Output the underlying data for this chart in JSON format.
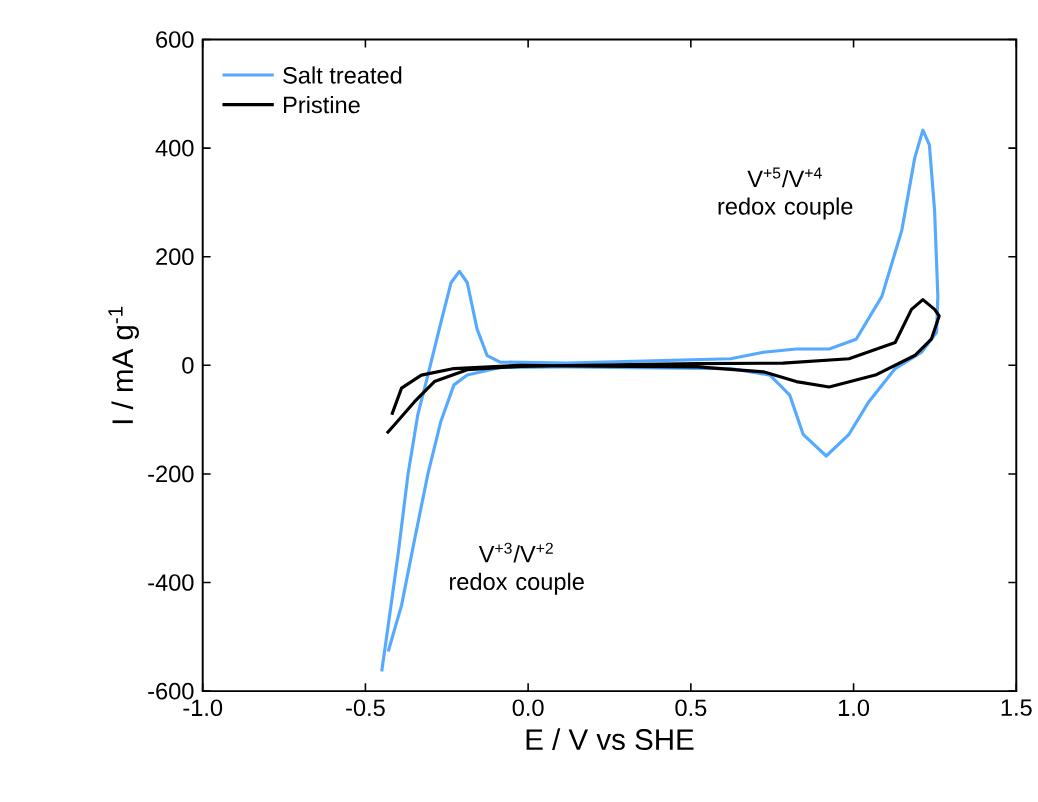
{
  "chart_data": {
    "type": "line",
    "xlabel": "E / V vs SHE",
    "ylabel": "I / mA g$^{-1}$",
    "xlim": [
      -1.0,
      1.5
    ],
    "ylim": [
      -600,
      600
    ],
    "xticks": [
      {
        "value": -1.0,
        "label": "-1.0"
      },
      {
        "value": -0.5,
        "label": "-0.5"
      },
      {
        "value": 0.0,
        "label": "0.0"
      },
      {
        "value": 0.5,
        "label": "0.5"
      },
      {
        "value": 1.0,
        "label": "1.0"
      },
      {
        "value": 1.5,
        "label": "1.5"
      }
    ],
    "yticks": [
      -600,
      -400,
      -200,
      0,
      200,
      400,
      600
    ],
    "grid": false,
    "legend": "top left",
    "marker": "none",
    "line_style": "solid",
    "annotations": [
      "V$^{+5}$/V$^{+4}$ redox couple",
      "V$^{+3}$/V$^{+2}$ redox couple"
    ],
    "series": [
      {
        "name": "Salt treated",
        "color": "#55aaff",
        "x": [
          -0.45,
          -0.43,
          -0.399,
          -0.369,
          -0.339,
          -0.308,
          -0.268,
          -0.237,
          -0.211,
          -0.187,
          -0.157,
          -0.126,
          -0.086,
          0.117,
          0.622,
          0.723,
          0.824,
          0.925,
          1.008,
          1.087,
          1.148,
          1.188,
          1.213,
          1.233,
          1.249,
          1.259,
          1.255,
          1.209,
          1.128,
          1.047,
          0.986,
          0.916,
          0.845,
          0.804,
          0.743,
          0.622,
          0.117,
          -0.086,
          -0.187,
          -0.228,
          -0.268,
          -0.308,
          -0.349,
          -0.389,
          -0.43
        ],
        "values": [
          -564,
          -479,
          -345,
          -200,
          -91,
          -18,
          79,
          152,
          173,
          152,
          67,
          18,
          6,
          4,
          12,
          24,
          30,
          30,
          48,
          127,
          248,
          382,
          433,
          406,
          285,
          127,
          61,
          24,
          -6,
          -67,
          -127,
          -167,
          -127,
          -55,
          -18,
          -6,
          -3,
          -4,
          -18,
          -36,
          -103,
          -200,
          -321,
          -442,
          -527
        ]
      },
      {
        "name": "Pristine",
        "color": "#000000",
        "x": [
          -0.434,
          -0.41,
          -0.349,
          -0.288,
          -0.187,
          -0.025,
          0.521,
          0.783,
          0.986,
          1.128,
          1.178,
          1.213,
          1.249,
          1.263,
          1.239,
          1.188,
          1.067,
          0.925,
          0.824,
          0.723,
          0.521,
          0.117,
          -0.025,
          -0.228,
          -0.328,
          -0.389,
          -0.419
        ],
        "values": [
          -125,
          -109,
          -67,
          -30,
          -8,
          -2,
          3,
          4,
          12,
          42,
          103,
          121,
          103,
          91,
          48,
          18,
          -18,
          -40,
          -30,
          -12,
          -3,
          -1,
          0,
          -6,
          -18,
          -42,
          -91
        ]
      }
    ]
  }
}
